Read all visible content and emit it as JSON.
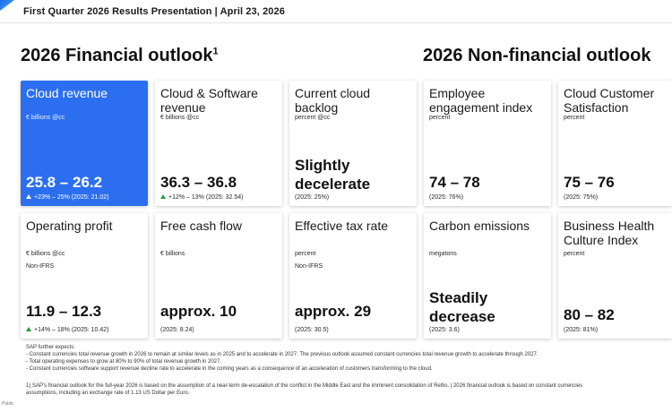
{
  "header": {
    "title": "First Quarter 2026 Results Presentation | April 23, 2026"
  },
  "headings": {
    "financial": "2026 Financial outlook",
    "financial_footnote": "1",
    "nonfinancial": "2026 Non-financial outlook"
  },
  "accent_color": "#2b6ff0",
  "up_arrow_color": "#1f9d3a",
  "cards": {
    "cloud_revenue": {
      "title": "Cloud revenue",
      "unit": "€ billions @cc",
      "value": "25.8 – 26.2",
      "note": "+23% – 25% (2025: 21.02)"
    },
    "cloud_software": {
      "title": "Cloud & Software revenue",
      "unit": "€ billions @cc",
      "value": "36.3 – 36.8",
      "note": "+12% – 13% (2025: 32.54)"
    },
    "backlog": {
      "title": "Current cloud backlog",
      "unit": "percent @cc",
      "value": "Slightly decelerate",
      "note": "(2025: 25%)"
    },
    "employee": {
      "title": "Employee engagement index",
      "unit": "percent",
      "value": "74 – 78",
      "note": "(2025: 76%)"
    },
    "csat": {
      "title": "Cloud Customer Satisfaction",
      "unit": "percent",
      "value": "75 – 76",
      "note": "(2025: 75%)"
    },
    "operating_profit": {
      "title": "Operating profit",
      "unit": "€ billions @cc",
      "sub": "Non-IFRS",
      "value": "11.9 – 12.3",
      "note": "+14% – 18% (2025: 10.42)"
    },
    "fcf": {
      "title": "Free cash flow",
      "unit": "€ billions",
      "value": "approx. 10",
      "note": "(2025: 8.24)"
    },
    "tax": {
      "title": "Effective tax rate",
      "unit": "percent",
      "sub": "Non-IFRS",
      "value": "approx. 29",
      "note": "(2025: 30.5)"
    },
    "carbon": {
      "title": "Carbon emissions",
      "unit": "megatons",
      "value": "Steadily decrease",
      "note": "(2025: 3.6)"
    },
    "health": {
      "title": "Business Health Culture Index",
      "unit": "percent",
      "value": "80 – 82",
      "note": "(2025: 81%)"
    }
  },
  "footer": {
    "expects_title": "SAP further expects:",
    "bullets": [
      "- Constant currencies total revenue growth in 2026 to remain at similar levels as in 2025 and to accelerate in 2027. The previous outlook assumed constant currencies total revenue growth to accelerate through 2027.",
      "- Total operating expenses to grow at 80% to 90% of total revenue growth in 2027.",
      "- Constant currencies software support revenue decline rate to accelerate in the coming years as a consequence of an acceleration of customers transforming to the cloud."
    ],
    "footnote_line1": "1) SAP's financial outlook for the full-year 2026 is based on the assumption of a near-term de-escalation of the conflict in the Middle East and the imminent consolidation of Reltio. | 2026 financial outlook is based on constant currencies",
    "footnote_line2": "assumptions, including an exchange rate of 1.13 US Dollar per Euro."
  },
  "classification": "Public"
}
